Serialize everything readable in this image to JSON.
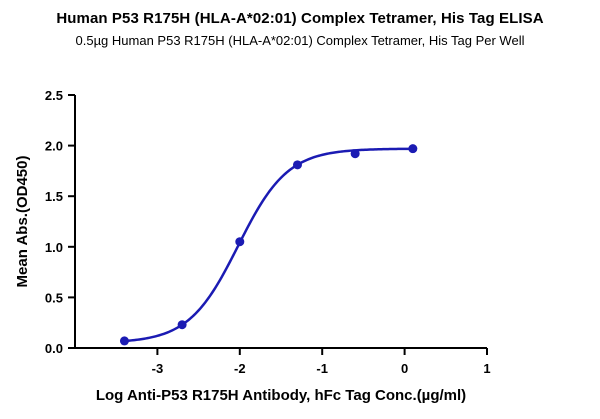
{
  "chart_data": {
    "type": "scatter",
    "title": "Human P53 R175H (HLA-A*02:01) Complex Tetramer, His Tag ELISA",
    "subtitle": "0.5µg Human P53 R175H (HLA-A*02:01) Complex Tetramer, His Tag Per Well",
    "xlabel": "Log Anti-P53 R175H Antibody, hFc Tag Conc.(µg/ml)",
    "ylabel": "Mean Abs.(OD450)",
    "x": [
      -3.4,
      -2.7,
      -2.0,
      -1.3,
      -0.6,
      0.1
    ],
    "y": [
      0.07,
      0.23,
      1.05,
      1.81,
      1.92,
      1.97
    ],
    "curve": {
      "model": "4PL-sigmoid",
      "bottom": 0.05,
      "top": 1.97,
      "logEC50": -2.02,
      "hillslope": 1.45,
      "x_start": -3.4,
      "x_end": 0.1
    },
    "xlim": [
      -4,
      1
    ],
    "ylim": [
      0,
      2.5
    ],
    "xticks": [
      "-3",
      "-2",
      "-1",
      "0",
      "1"
    ],
    "yticks": [
      "0.0",
      "0.5",
      "1.0",
      "1.5",
      "2.0",
      "2.5"
    ],
    "grid": false,
    "legend": null,
    "line_color": "#1b1bb3",
    "marker_color": "#1b1bb3",
    "axis_color": "#000000",
    "background_color": "#ffffff"
  }
}
